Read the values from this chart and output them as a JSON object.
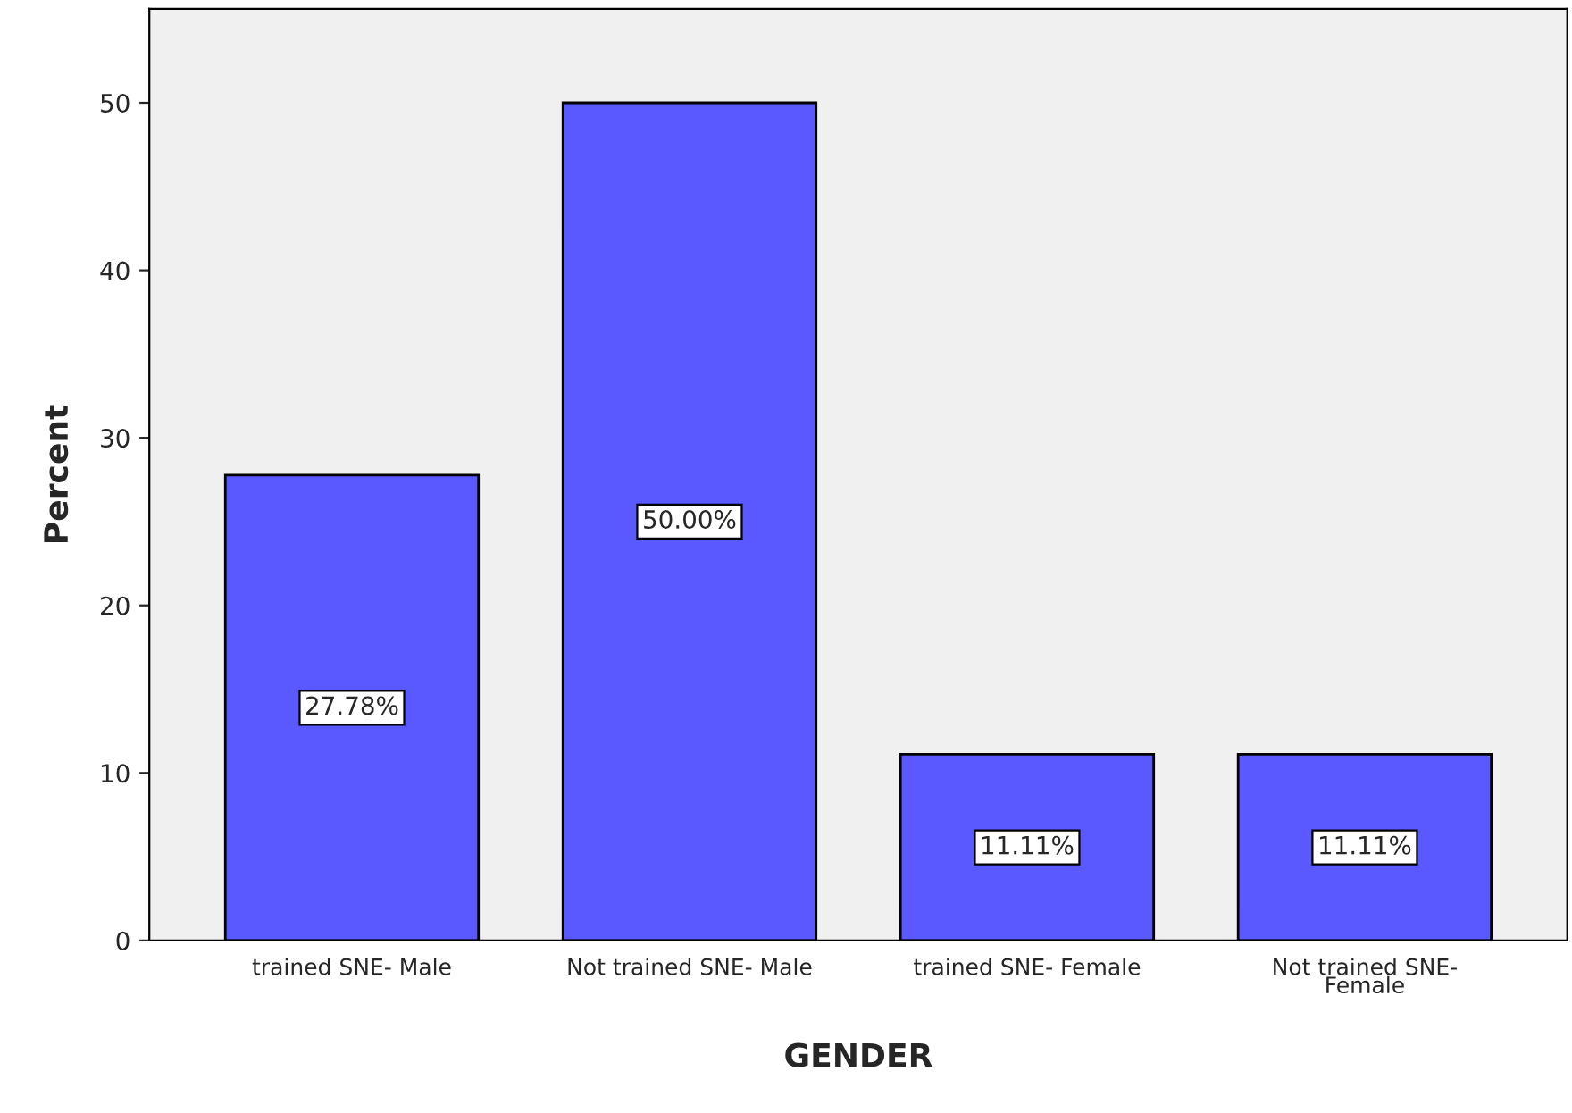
{
  "chart_data": {
    "type": "bar",
    "xlabel": "GENDER",
    "ylabel": "Percent",
    "categories": [
      "trained SNE- Male",
      "Not trained SNE- Male",
      "trained SNE- Female",
      "Not trained SNE-\nFemale"
    ],
    "values": [
      27.78,
      50.0,
      11.11,
      11.11
    ],
    "value_labels": [
      "27.78%",
      "50.00%",
      "11.11%",
      "11.11%"
    ],
    "color": "#5959ff",
    "ylim": [
      0,
      55.6
    ],
    "yticks": [
      0,
      10,
      20,
      30,
      40,
      50
    ],
    "grid": false,
    "legend": false
  }
}
